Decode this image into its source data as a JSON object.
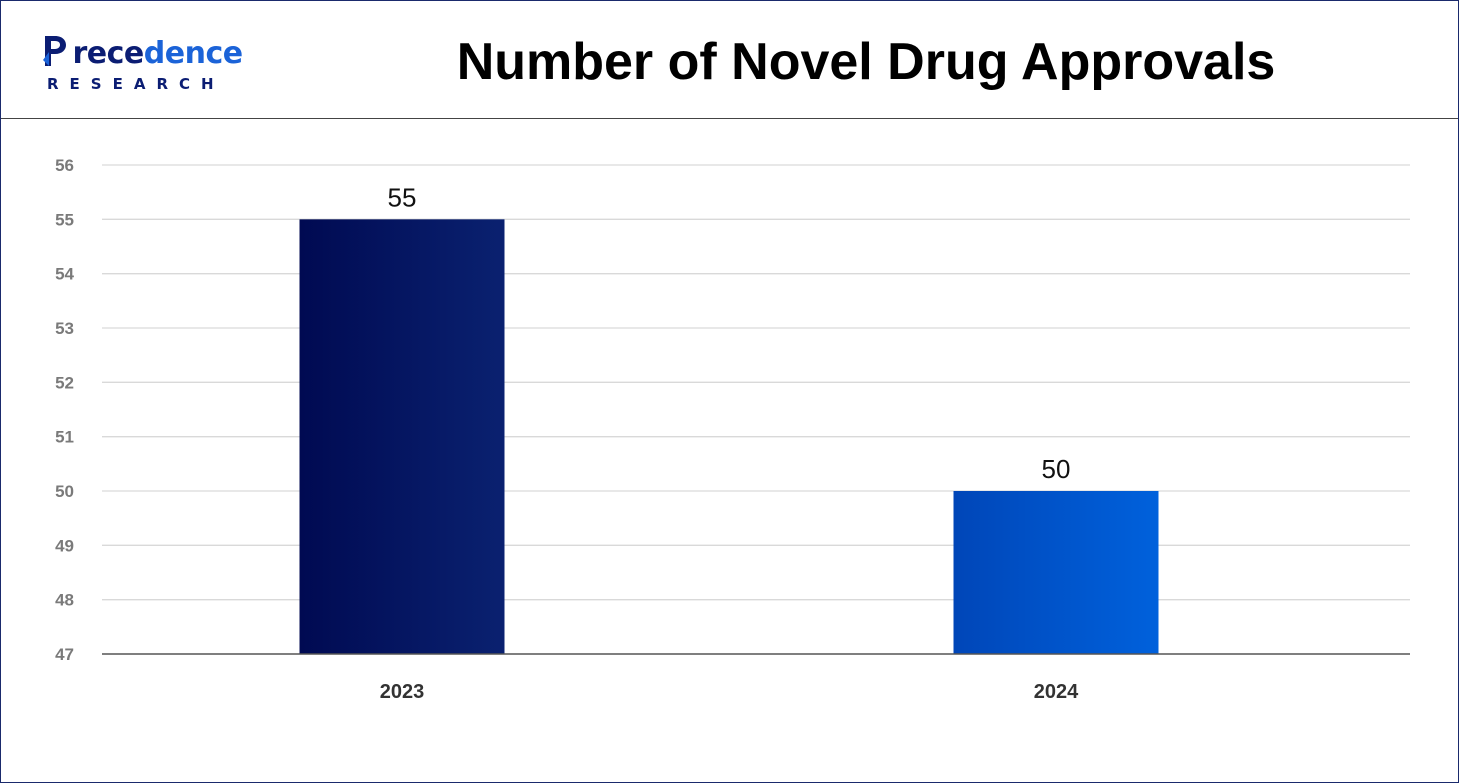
{
  "brand": {
    "logo_initial": "P",
    "logo_word_dark": "rece",
    "logo_word_blue": "dence",
    "logo_sub": "RESEARCH"
  },
  "chart_data": {
    "type": "bar",
    "title": "Number of Novel Drug Approvals",
    "xlabel": "",
    "ylabel": "",
    "categories": [
      "2023",
      "2024"
    ],
    "values": [
      55,
      50
    ],
    "ylim": [
      47,
      56
    ],
    "yticks": [
      47,
      48,
      49,
      50,
      51,
      52,
      53,
      54,
      55,
      56
    ],
    "grid": true,
    "data_labels": [
      "55",
      "50"
    ],
    "colors": {
      "bar_2023": [
        "#000a52",
        "#0a2170"
      ],
      "bar_2024": [
        "#0046b8",
        "#0061dc"
      ],
      "grid": "#d9d9d9",
      "axis": "#555555"
    }
  }
}
